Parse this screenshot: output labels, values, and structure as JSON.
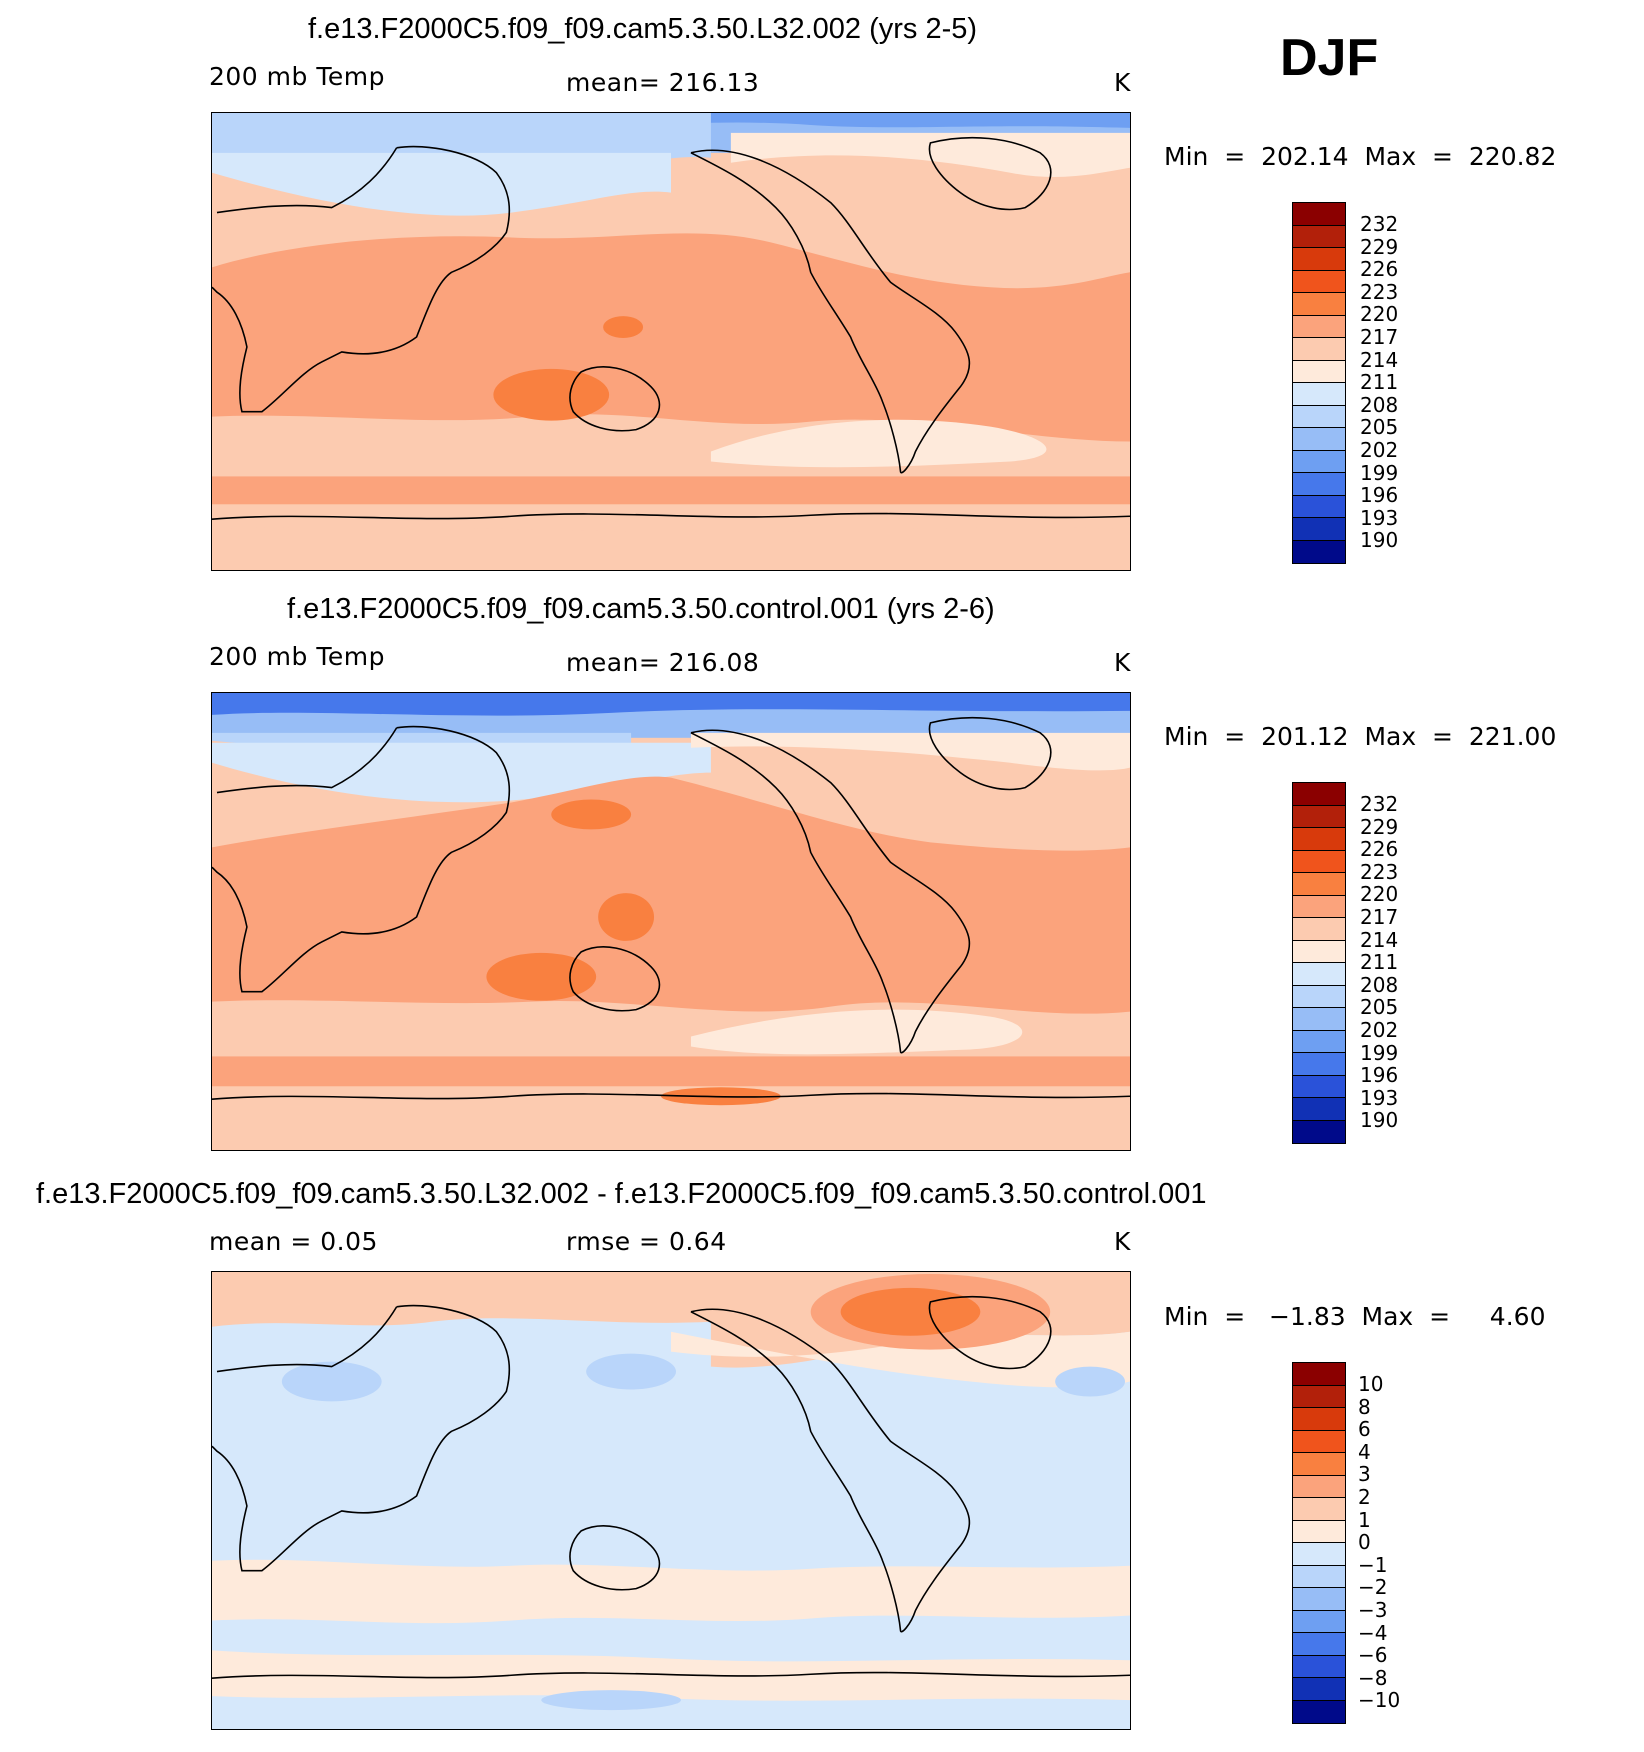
{
  "season": "DJF",
  "panels": [
    {
      "title": "f.e13.F2000C5.f09_f09.cam5.3.50.L32.002 (yrs 2-5)",
      "left_label": "200 mb Temp",
      "center_label": "mean= 216.13",
      "units": "K",
      "stats": "Min  =  202.14  Max  =  220.82",
      "colorbar": {
        "labels": [
          "232",
          "229",
          "226",
          "223",
          "220",
          "217",
          "214",
          "211",
          "208",
          "205",
          "202",
          "199",
          "196",
          "193",
          "190"
        ],
        "colors": [
          "#8b0000",
          "#b2200a",
          "#d83a0c",
          "#f0541c",
          "#f98040",
          "#fba37c",
          "#fccbb0",
          "#feeadb",
          "#d6e8fb",
          "#b9d5fa",
          "#97bdf6",
          "#6e9ff2",
          "#4678eb",
          "#2a52d9",
          "#1131b5",
          "#000a8a"
        ]
      }
    },
    {
      "title": "f.e13.F2000C5.f09_f09.cam5.3.50.control.001 (yrs 2-6)",
      "left_label": "200 mb Temp",
      "center_label": "mean= 216.08",
      "units": "K",
      "stats": "Min  =  201.12  Max  =  221.00",
      "colorbar": {
        "labels": [
          "232",
          "229",
          "226",
          "223",
          "220",
          "217",
          "214",
          "211",
          "208",
          "205",
          "202",
          "199",
          "196",
          "193",
          "190"
        ],
        "colors": [
          "#8b0000",
          "#b2200a",
          "#d83a0c",
          "#f0541c",
          "#f98040",
          "#fba37c",
          "#fccbb0",
          "#feeadb",
          "#d6e8fb",
          "#b9d5fa",
          "#97bdf6",
          "#6e9ff2",
          "#4678eb",
          "#2a52d9",
          "#1131b5",
          "#000a8a"
        ]
      }
    },
    {
      "title": "f.e13.F2000C5.f09_f09.cam5.3.50.L32.002 - f.e13.F2000C5.f09_f09.cam5.3.50.control.001",
      "left_label": "mean =     0.05",
      "center_label": "rmse =     0.64",
      "units": "K",
      "stats": "Min  =   −1.83  Max  =     4.60",
      "colorbar": {
        "labels": [
          "10",
          "8",
          "6",
          "4",
          "3",
          "2",
          "1",
          "0",
          "−1",
          "−2",
          "−3",
          "−4",
          "−6",
          "−8",
          "−10"
        ],
        "colors": [
          "#8b0000",
          "#b2200a",
          "#d83a0c",
          "#f0541c",
          "#f98040",
          "#fba37c",
          "#fccbb0",
          "#feeadb",
          "#d6e8fb",
          "#b9d5fa",
          "#97bdf6",
          "#6e9ff2",
          "#4678eb",
          "#2a52d9",
          "#1131b5",
          "#000a8a"
        ]
      }
    }
  ]
}
